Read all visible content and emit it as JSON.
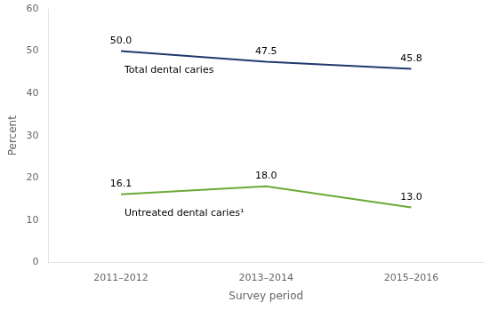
{
  "chart_data": {
    "type": "line",
    "categories": [
      "2011–2012",
      "2013–2014",
      "2015–2016"
    ],
    "series": [
      {
        "name": "Total dental caries",
        "color": "#1f3a6e",
        "values": [
          50.0,
          47.5,
          45.8
        ],
        "value_labels": [
          "50.0",
          "47.5",
          "45.8"
        ]
      },
      {
        "name": "Untreated dental caries¹",
        "color": "#6aaa35",
        "values": [
          16.1,
          18.0,
          13.0
        ],
        "value_labels": [
          "16.1",
          "18.0",
          "13.0"
        ]
      }
    ],
    "x_label": "Survey period",
    "y_label": "Percent",
    "ylim": [
      0,
      60
    ],
    "yticks": [
      0,
      10,
      20,
      30,
      40,
      50,
      60
    ],
    "grid": false,
    "data_labels": true
  }
}
